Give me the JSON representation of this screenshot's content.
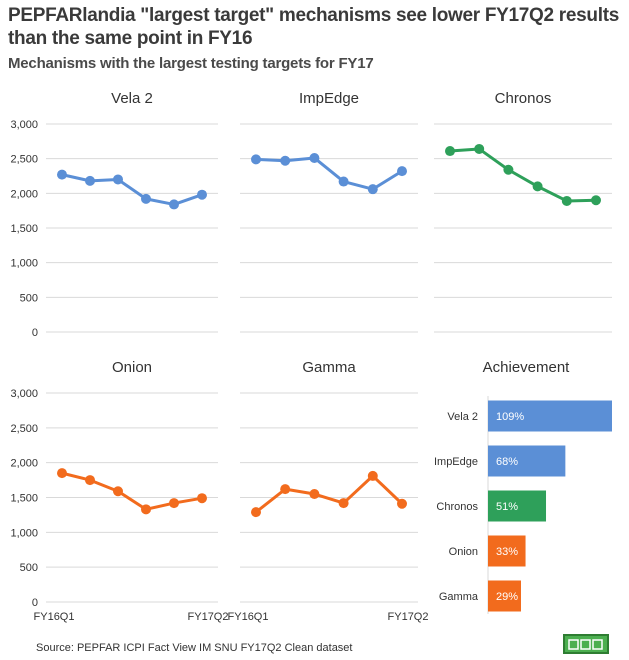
{
  "title": "PEPFARlandia  \"largest target\" mechanisms see lower FY17Q2 results than the same point in FY16",
  "subtitle": "Mechanisms with the largest testing targets for FY17",
  "source": "Source: PEPFAR ICPI Fact View IM SNU FY17Q2 Clean dataset",
  "colors": {
    "blue": "#5b8fd6",
    "green": "#2ea05a",
    "orange": "#f26b1d",
    "grid": "#d9d9d9"
  },
  "chart_data": [
    {
      "type": "line",
      "title": "Vela 2",
      "color": "blue",
      "x": [
        "FY16Q1",
        "",
        "",
        "",
        "",
        "FY17Q2"
      ],
      "values": [
        2270,
        2180,
        2200,
        1920,
        1840,
        1980
      ],
      "ylim": [
        0,
        3000
      ],
      "yticks": [
        "0",
        "500",
        "1,000",
        "1,500",
        "2,000",
        "2,500",
        "3,000"
      ]
    },
    {
      "type": "line",
      "title": "ImpEdge",
      "color": "blue",
      "x": [
        "FY16Q1",
        "",
        "",
        "",
        "",
        "FY17Q2"
      ],
      "values": [
        2490,
        2470,
        2510,
        2170,
        2060,
        2320
      ],
      "ylim": [
        0,
        3000
      ]
    },
    {
      "type": "line",
      "title": "Chronos",
      "color": "green",
      "x": [
        "FY16Q1",
        "",
        "",
        "",
        "",
        "FY17Q2"
      ],
      "values": [
        2610,
        2640,
        2340,
        2100,
        1890,
        1900
      ],
      "ylim": [
        0,
        3000
      ]
    },
    {
      "type": "line",
      "title": "Onion",
      "color": "orange",
      "x": [
        "FY16Q1",
        "",
        "",
        "",
        "",
        "FY17Q2"
      ],
      "values": [
        1850,
        1750,
        1590,
        1330,
        1420,
        1490
      ],
      "ylim": [
        0,
        3000
      ],
      "yticks": [
        "0",
        "500",
        "1,000",
        "1,500",
        "2,000",
        "2,500",
        "3,000"
      ],
      "xticks": [
        "FY16Q1",
        "FY17Q2"
      ]
    },
    {
      "type": "line",
      "title": "Gamma",
      "color": "orange",
      "x": [
        "FY16Q1",
        "",
        "",
        "",
        "",
        "FY17Q2"
      ],
      "values": [
        1290,
        1620,
        1550,
        1420,
        1810,
        1410
      ],
      "ylim": [
        0,
        3000
      ],
      "xticks": [
        "FY16Q1",
        "FY17Q2"
      ]
    },
    {
      "type": "bar",
      "title": "Achievement",
      "orientation": "horizontal",
      "categories": [
        "Vela 2",
        "ImpEdge",
        "Chronos",
        "Onion",
        "Gamma"
      ],
      "values": [
        109,
        68,
        51,
        33,
        29
      ],
      "labels": [
        "109%",
        "68%",
        "51%",
        "33%",
        "29%"
      ],
      "colors": [
        "blue",
        "blue",
        "green",
        "orange",
        "orange"
      ]
    }
  ]
}
